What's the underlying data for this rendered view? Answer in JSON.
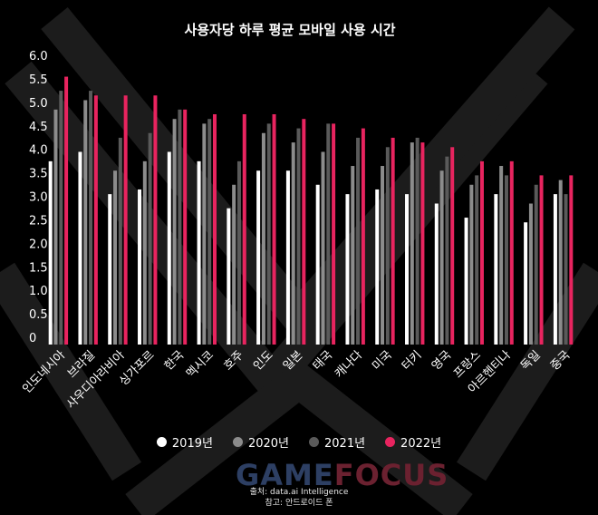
{
  "chart_data": {
    "type": "bar",
    "title": "사용자당 하루 평균 모바일 사용 시간",
    "categories": [
      "인도네시아",
      "브라질",
      "사우디아라비아",
      "싱가포르",
      "한국",
      "멕시코",
      "호주",
      "인도",
      "일본",
      "태국",
      "캐나다",
      "미국",
      "터키",
      "영국",
      "프랑스",
      "아르헨티나",
      "독일",
      "중국"
    ],
    "series": [
      {
        "name": "2019년",
        "color": "#ffffff",
        "values": [
          3.9,
          4.1,
          3.2,
          3.3,
          4.1,
          3.9,
          2.9,
          3.7,
          3.7,
          3.4,
          3.2,
          3.3,
          3.2,
          3.0,
          2.7,
          3.2,
          2.6,
          3.2
        ]
      },
      {
        "name": "2020년",
        "color": "#8c8c8c",
        "values": [
          5.0,
          5.2,
          3.7,
          3.9,
          4.8,
          4.7,
          3.4,
          4.5,
          4.3,
          4.1,
          3.8,
          3.8,
          4.3,
          3.7,
          3.4,
          3.8,
          3.0,
          3.5
        ]
      },
      {
        "name": "2021년",
        "color": "#5a5a5a",
        "values": [
          5.4,
          5.4,
          4.4,
          4.5,
          5.0,
          4.8,
          3.9,
          4.7,
          4.6,
          4.7,
          4.4,
          4.2,
          4.4,
          4.0,
          3.6,
          3.6,
          3.4,
          3.2
        ]
      },
      {
        "name": "2022년",
        "color": "#e8245f",
        "values": [
          5.7,
          5.3,
          5.3,
          5.3,
          5.0,
          4.9,
          4.9,
          4.9,
          4.8,
          4.7,
          4.6,
          4.4,
          4.3,
          4.2,
          3.9,
          3.9,
          3.6,
          3.6
        ]
      }
    ],
    "yticks": [
      "0",
      "0.5",
      "1.0",
      "1.5",
      "2.0",
      "2.5",
      "3.0",
      "3.5",
      "4.0",
      "4.5",
      "5.0",
      "5.5",
      "6.0"
    ],
    "ylim": [
      0,
      6.0
    ],
    "grid": false,
    "legend": "bottom"
  },
  "watermark": {
    "part1": "GAME",
    "part2": "FOCUS"
  },
  "source": {
    "line1": "출처: data.ai Intelligence",
    "line2": "참고: 안드로이드 폰"
  }
}
